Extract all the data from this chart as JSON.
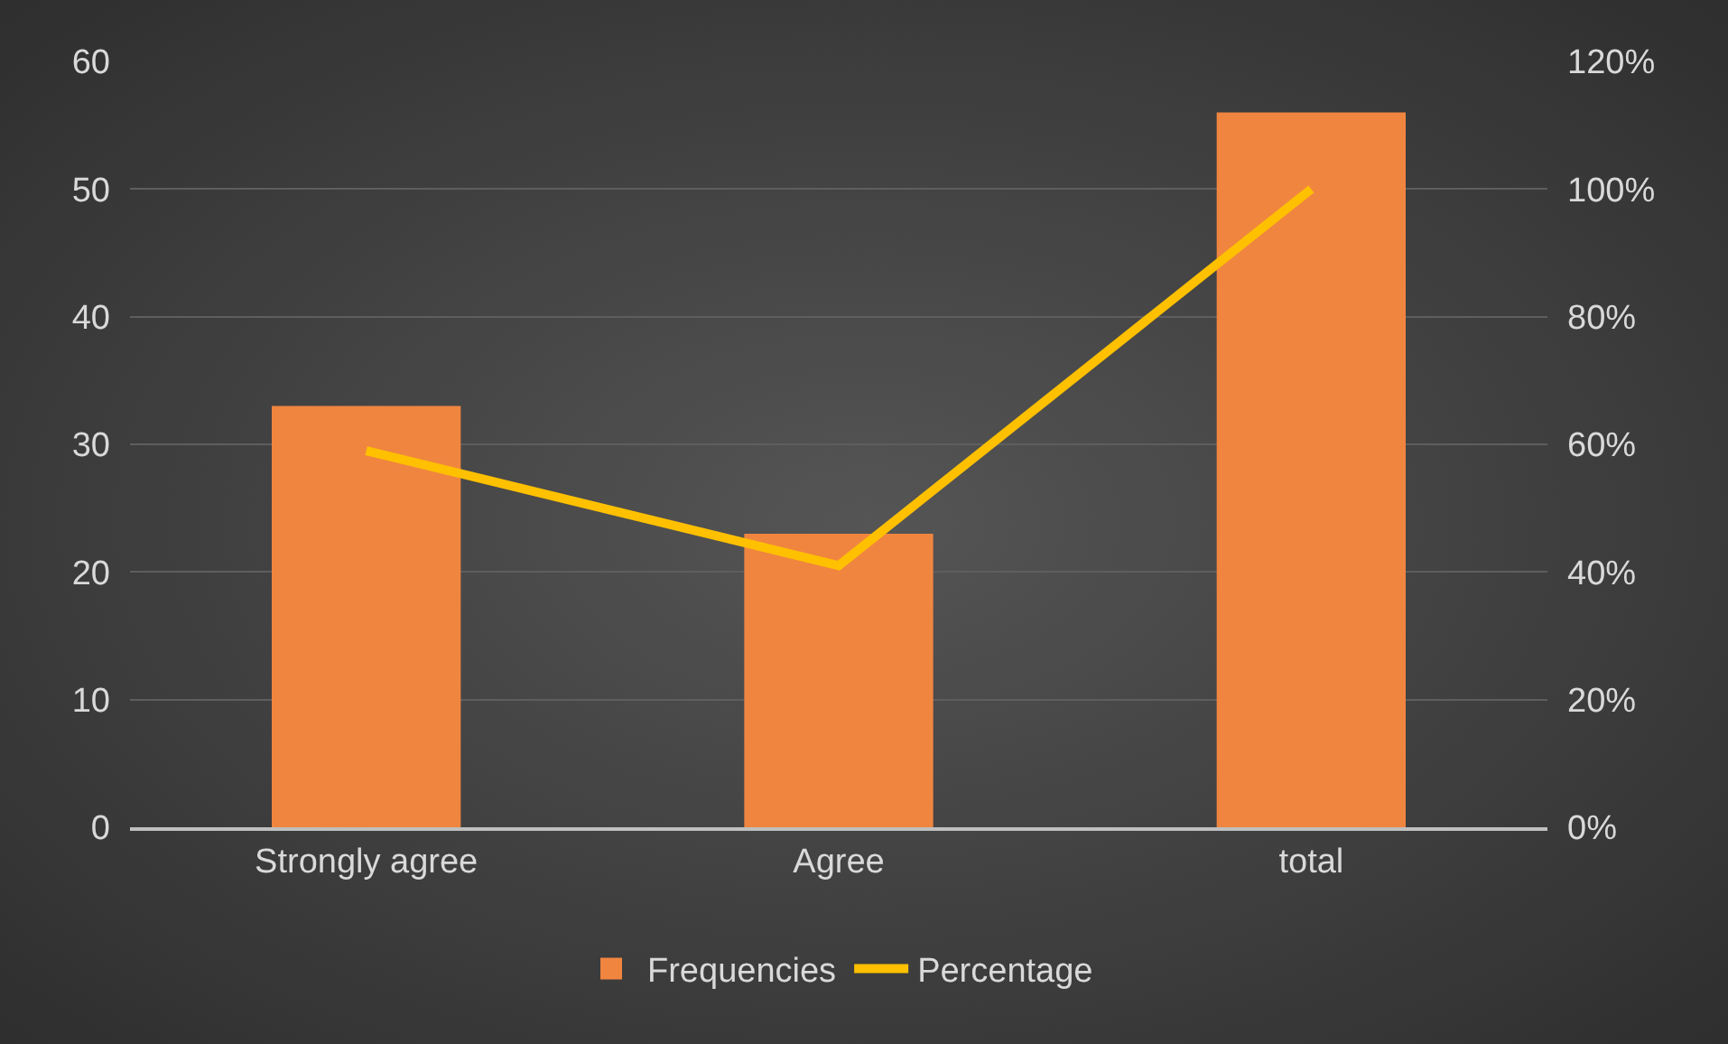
{
  "chart_data": {
    "type": "bar",
    "categories": [
      "Strongly agree",
      "Agree",
      "total"
    ],
    "series": [
      {
        "name": "Frequencies",
        "color": "#f08540",
        "values": [
          33,
          23,
          56
        ]
      },
      {
        "name": "Percentage",
        "type": "line",
        "axis": "y2",
        "color": "#ffc000",
        "values": [
          59,
          41,
          100
        ]
      }
    ],
    "ylim": [
      0,
      60
    ],
    "yticks": [
      0,
      10,
      20,
      30,
      40,
      50,
      60
    ],
    "y2lim": [
      0,
      120
    ],
    "y2ticks": [
      {
        "value": 0,
        "label": "0%"
      },
      {
        "value": 20,
        "label": "20%"
      },
      {
        "value": 40,
        "label": "40%"
      },
      {
        "value": 60,
        "label": "60%"
      },
      {
        "value": 80,
        "label": "80%"
      },
      {
        "value": 100,
        "label": "100%"
      },
      {
        "value": 120,
        "label": "120%"
      }
    ],
    "grid": "y",
    "legend": "bottom",
    "marker": "none",
    "line_style": "solid"
  }
}
